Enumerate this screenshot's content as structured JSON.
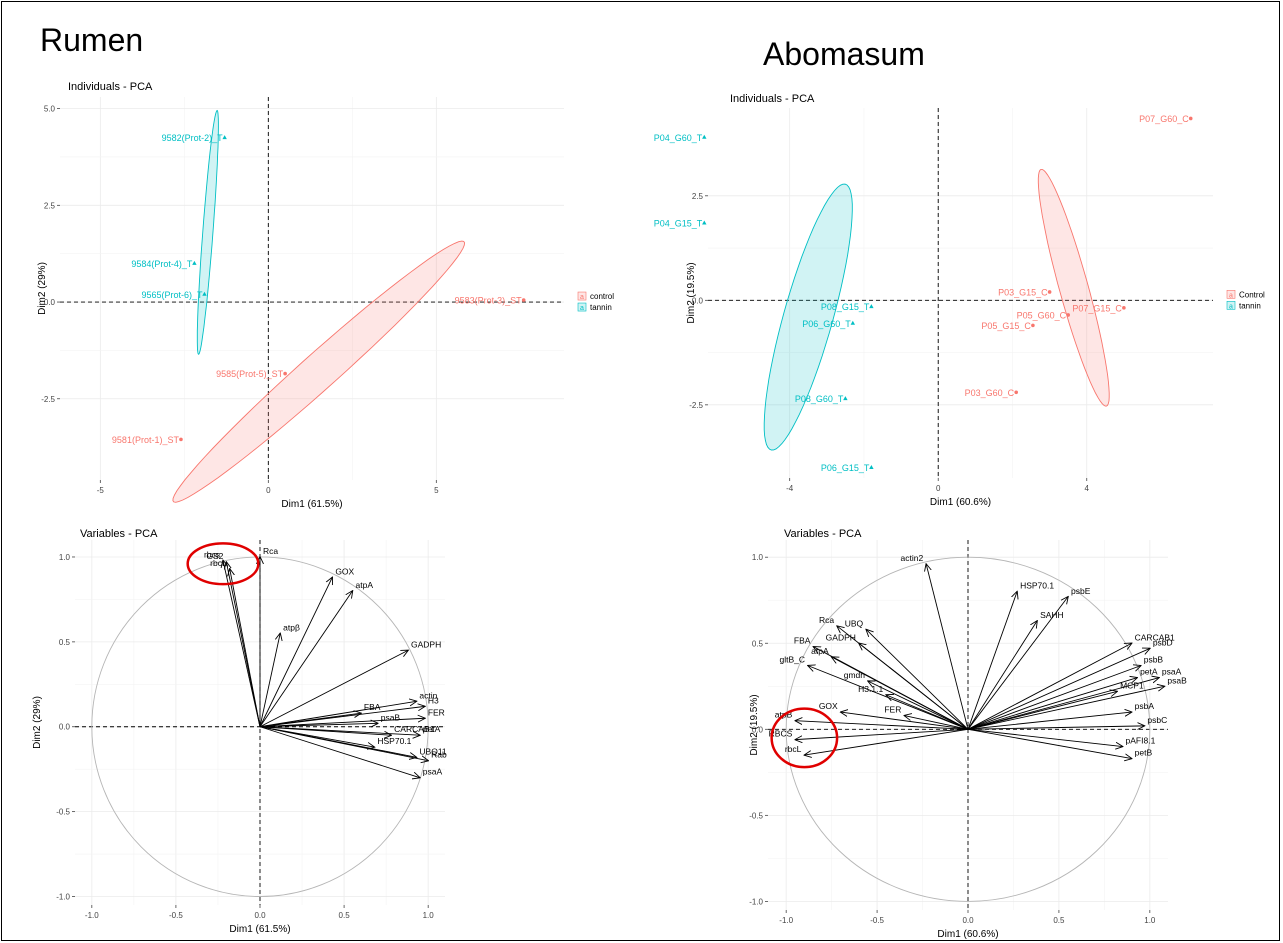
{
  "titles": {
    "rumen": "Rumen",
    "abomasum": "Abomasum"
  },
  "colors": {
    "control": "#F8766D",
    "tannin": "#00BFC4",
    "highlight": "#e00000",
    "axis": "#000000",
    "grid": "#ebebeb"
  },
  "chart_data": [
    {
      "type": "scatter",
      "title": "Individuals - PCA",
      "xlabel": "Dim1 (61.5%)",
      "ylabel": "Dim2 (29%)",
      "xlim": [
        -6.2,
        8.8
      ],
      "ylim": [
        -4.6,
        5.3
      ],
      "xticks": [
        -5,
        0,
        5
      ],
      "xtick_labels": [
        "-5",
        "0",
        "5"
      ],
      "yticks": [
        -2.5,
        0.0,
        2.5,
        5.0
      ],
      "ytick_labels": [
        "-2.5",
        "0.0",
        "2.5",
        "5.0"
      ],
      "legend": {
        "position": "right",
        "entries": [
          "control",
          "tannin"
        ]
      },
      "series": [
        {
          "name": "control",
          "points": [
            {
              "label": "9583(Prot-3)_ST",
              "x": 7.6,
              "y": 0.05
            },
            {
              "label": "9585(Prot-5)_ST",
              "x": 0.5,
              "y": -1.85
            },
            {
              "label": "9581(Prot-1)_ST",
              "x": -2.6,
              "y": -3.55
            }
          ],
          "ellipse": {
            "cx": 1.5,
            "cy": -1.8,
            "rx": 9.3,
            "ry": 0.58,
            "angle_deg": 21
          }
        },
        {
          "name": "tannin",
          "points": [
            {
              "label": "9582(Prot-2)_T",
              "x": -1.3,
              "y": 4.25
            },
            {
              "label": "9584(Prot-4)_T",
              "x": -2.2,
              "y": 1.0
            },
            {
              "label": "9565(Prot-6)_T",
              "x": -1.9,
              "y": 0.2
            }
          ],
          "ellipse": {
            "cx": -1.8,
            "cy": 1.8,
            "rx": 3.2,
            "ry": 0.3,
            "angle_deg": 80
          }
        }
      ]
    },
    {
      "type": "biplot",
      "title": "Variables - PCA",
      "xlabel": "Dim1 (61.5%)",
      "ylabel": "Dim2 (29%)",
      "xlim": [
        -1.1,
        1.1
      ],
      "ylim": [
        -1.05,
        1.1
      ],
      "xticks": [
        -1.0,
        -0.5,
        0.0,
        0.5,
        1.0
      ],
      "xtick_labels": [
        "-1.0",
        "-0.5",
        "0.0",
        "0.5",
        "1.0"
      ],
      "yticks": [
        -1.0,
        -0.5,
        0.0,
        0.5,
        1.0
      ],
      "ytick_labels": [
        "-1.0",
        "-0.5",
        "0.0",
        "0.5",
        "1.0"
      ],
      "highlight": {
        "cx": -0.22,
        "cy": 0.96,
        "rx": 0.21,
        "ry": 0.12
      },
      "vectors": [
        {
          "label": "Rca",
          "x": 0.0,
          "y": 1.0
        },
        {
          "label": "rbcs",
          "x": -0.22,
          "y": 0.98
        },
        {
          "label": "GS2",
          "x": -0.2,
          "y": 0.97
        },
        {
          "label": "rbcL",
          "x": -0.18,
          "y": 0.93
        },
        {
          "label": "GOX",
          "x": 0.43,
          "y": 0.88
        },
        {
          "label": "atpA",
          "x": 0.55,
          "y": 0.8
        },
        {
          "label": "atpβ",
          "x": 0.12,
          "y": 0.55
        },
        {
          "label": "GADPH",
          "x": 0.88,
          "y": 0.45
        },
        {
          "label": "actin",
          "x": 0.93,
          "y": 0.15
        },
        {
          "label": "H3",
          "x": 0.98,
          "y": 0.12
        },
        {
          "label": "FBA",
          "x": 0.6,
          "y": 0.08
        },
        {
          "label": "FER",
          "x": 0.98,
          "y": 0.05
        },
        {
          "label": "psaB",
          "x": 0.7,
          "y": 0.02
        },
        {
          "label": "petA",
          "x": 0.95,
          "y": -0.05
        },
        {
          "label": "CARCAB1",
          "x": 0.78,
          "y": -0.05
        },
        {
          "label": "HSP70.1",
          "x": 0.68,
          "y": -0.12
        },
        {
          "label": "UBQ11",
          "x": 0.93,
          "y": -0.18
        },
        {
          "label": "Rab",
          "x": 1.0,
          "y": -0.2
        },
        {
          "label": "psaA",
          "x": 0.95,
          "y": -0.3
        }
      ]
    },
    {
      "type": "scatter",
      "title": "Individuals - PCA",
      "xlabel": "Dim1 (60.6%)",
      "ylabel": "Dim2 (19.5%)",
      "xlim": [
        -6.2,
        7.4
      ],
      "ylim": [
        -4.25,
        4.6
      ],
      "xticks": [
        -4,
        0,
        4
      ],
      "xtick_labels": [
        "-4",
        "0",
        "4"
      ],
      "yticks": [
        -2.5,
        0.0,
        2.5
      ],
      "ytick_labels": [
        "-2.5",
        "0.0",
        "2.5"
      ],
      "legend": {
        "position": "right",
        "entries": [
          "Control",
          "tannin"
        ]
      },
      "series": [
        {
          "name": "Control",
          "points": [
            {
              "label": "P07_G60_C",
              "x": 6.8,
              "y": 4.35
            },
            {
              "label": "P03_G15_C",
              "x": 3.0,
              "y": 0.2
            },
            {
              "label": "P05_G60_C",
              "x": 3.5,
              "y": -0.35
            },
            {
              "label": "P07_G15_C",
              "x": 5.0,
              "y": -0.18
            },
            {
              "label": "P05_G15_C",
              "x": 2.55,
              "y": -0.6
            },
            {
              "label": "P03_G60_C",
              "x": 2.1,
              "y": -2.2
            }
          ],
          "ellipse": {
            "cx": 3.65,
            "cy": 0.3,
            "rx": 3.35,
            "ry": 0.68,
            "angle_deg": -57
          }
        },
        {
          "name": "tannin",
          "points": [
            {
              "label": "P04_G60_T",
              "x": -6.3,
              "y": 3.9
            },
            {
              "label": "P04_G15_T",
              "x": -6.3,
              "y": 1.85
            },
            {
              "label": "P08_G15_T",
              "x": -1.8,
              "y": -0.15
            },
            {
              "label": "P06_G60_T",
              "x": -2.3,
              "y": -0.55
            },
            {
              "label": "P08_G60_T",
              "x": -2.5,
              "y": -2.35
            },
            {
              "label": "P06_G15_T",
              "x": -1.8,
              "y": -4.0
            }
          ],
          "ellipse": {
            "cx": -3.5,
            "cy": -0.4,
            "rx": 3.8,
            "ry": 1.15,
            "angle_deg": 55
          }
        }
      ]
    },
    {
      "type": "biplot",
      "title": "Variables - PCA",
      "xlabel": "Dim1 (60.6%)",
      "ylabel": "Dim2 (19.5%)",
      "xlim": [
        -1.1,
        1.1
      ],
      "ylim": [
        -1.05,
        1.1
      ],
      "xticks": [
        -1.0,
        -0.5,
        0.0,
        0.5,
        1.0
      ],
      "xtick_labels": [
        "-1.0",
        "-0.5",
        "0.0",
        "0.5",
        "1.0"
      ],
      "yticks": [
        -1.0,
        -0.5,
        0.0,
        0.5,
        1.0
      ],
      "ytick_labels": [
        "-1.0",
        "-0.5",
        "0.0",
        "0.5",
        "1.0"
      ],
      "highlight": {
        "cx": -0.9,
        "cy": -0.05,
        "rx": 0.18,
        "ry": 0.17
      },
      "vectors": [
        {
          "label": "actin2",
          "x": -0.23,
          "y": 0.96
        },
        {
          "label": "HSP70.1",
          "x": 0.27,
          "y": 0.8
        },
        {
          "label": "psbE",
          "x": 0.55,
          "y": 0.77
        },
        {
          "label": "SAHH",
          "x": 0.38,
          "y": 0.63
        },
        {
          "label": "CARCAB1",
          "x": 0.9,
          "y": 0.5
        },
        {
          "label": "psbD",
          "x": 1.0,
          "y": 0.47
        },
        {
          "label": "psbB",
          "x": 0.95,
          "y": 0.37
        },
        {
          "label": "petA",
          "x": 0.93,
          "y": 0.3
        },
        {
          "label": "psaA",
          "x": 1.05,
          "y": 0.3
        },
        {
          "label": "MCP1",
          "x": 0.82,
          "y": 0.22
        },
        {
          "label": "psaB",
          "x": 1.08,
          "y": 0.25
        },
        {
          "label": "psbA",
          "x": 0.9,
          "y": 0.1
        },
        {
          "label": "psbC",
          "x": 0.97,
          "y": 0.02
        },
        {
          "label": "pAFI8.1",
          "x": 0.85,
          "y": -0.1
        },
        {
          "label": "petB",
          "x": 0.9,
          "y": -0.17
        },
        {
          "label": "Rca",
          "x": -0.72,
          "y": 0.6
        },
        {
          "label": "UBQ",
          "x": -0.56,
          "y": 0.58
        },
        {
          "label": "FBA",
          "x": -0.85,
          "y": 0.48
        },
        {
          "label": "GADPH",
          "x": -0.6,
          "y": 0.5
        },
        {
          "label": "atpA",
          "x": -0.75,
          "y": 0.42
        },
        {
          "label": "gltB_C",
          "x": -0.88,
          "y": 0.37
        },
        {
          "label": "gmdh",
          "x": -0.55,
          "y": 0.28
        },
        {
          "label": "H3.1.1",
          "x": -0.45,
          "y": 0.2
        },
        {
          "label": "GOX",
          "x": -0.7,
          "y": 0.1
        },
        {
          "label": "FER",
          "x": -0.35,
          "y": 0.08
        },
        {
          "label": "atpB",
          "x": -0.95,
          "y": 0.05
        },
        {
          "label": "RBCS",
          "x": -0.95,
          "y": -0.06
        },
        {
          "label": "rbcL",
          "x": -0.9,
          "y": -0.15
        }
      ]
    }
  ]
}
